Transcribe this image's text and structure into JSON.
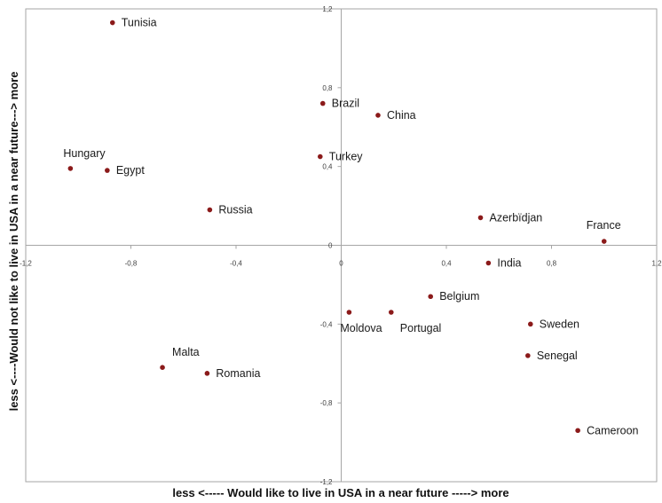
{
  "chart_data": {
    "type": "scatter",
    "title": "",
    "xlabel": "less <----- Would like to live in USA in a near future -----> more",
    "ylabel": "less <----Would not like to live in USA in a near future---> more",
    "xlim": [
      -1.2,
      1.2
    ],
    "ylim": [
      -1.2,
      1.2
    ],
    "x_ticks": [
      -1.2,
      -0.8,
      -0.4,
      0,
      0.4,
      0.8,
      1.2
    ],
    "y_ticks": [
      -1.2,
      -0.8,
      -0.4,
      0,
      0.4,
      0.8,
      1.2
    ],
    "x_tick_labels": [
      "-1,2",
      "-0,8",
      "-0,4",
      "0",
      "0,4",
      "0,8",
      "1,2"
    ],
    "y_tick_labels": [
      "-1,2",
      "-0,8",
      "-0,4",
      "0",
      "0,4",
      "0,8",
      "1,2"
    ],
    "grid": false,
    "legend": "none",
    "marker_color": "#8b1a1a",
    "points": [
      {
        "label": "Tunisia",
        "x": -0.87,
        "y": 1.13
      },
      {
        "label": "Brazil",
        "x": -0.07,
        "y": 0.72
      },
      {
        "label": "China",
        "x": 0.14,
        "y": 0.66
      },
      {
        "label": "Hungary",
        "x": -1.03,
        "y": 0.39
      },
      {
        "label": "Egypt",
        "x": -0.89,
        "y": 0.38
      },
      {
        "label": "Turkey",
        "x": -0.08,
        "y": 0.45
      },
      {
        "label": "Russia",
        "x": -0.5,
        "y": 0.18
      },
      {
        "label": "Azerbïdjan",
        "x": 0.53,
        "y": 0.14
      },
      {
        "label": "France",
        "x": 1.0,
        "y": 0.02
      },
      {
        "label": "India",
        "x": 0.56,
        "y": -0.09
      },
      {
        "label": "Belgium",
        "x": 0.34,
        "y": -0.26
      },
      {
        "label": "Moldova",
        "x": 0.03,
        "y": -0.34
      },
      {
        "label": "Portugal",
        "x": 0.19,
        "y": -0.34
      },
      {
        "label": "Sweden",
        "x": 0.72,
        "y": -0.4
      },
      {
        "label": "Senegal",
        "x": 0.71,
        "y": -0.56
      },
      {
        "label": "Malta",
        "x": -0.68,
        "y": -0.62
      },
      {
        "label": "Romania",
        "x": -0.51,
        "y": -0.65
      },
      {
        "label": "Cameroon",
        "x": 0.9,
        "y": -0.94
      }
    ]
  }
}
